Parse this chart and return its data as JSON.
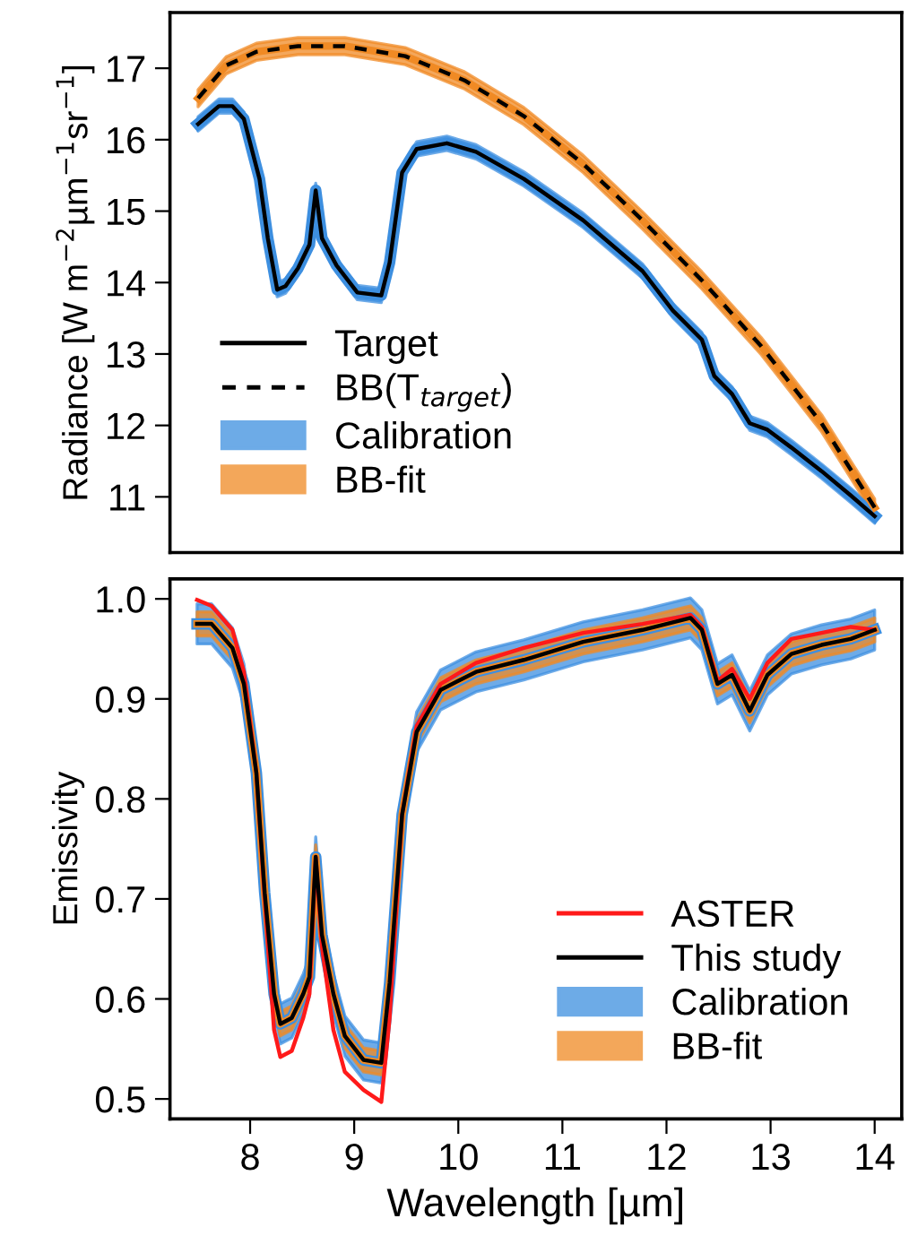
{
  "chart_data": [
    {
      "type": "line",
      "ylabel": "Radiance [W m$^{−2}$µm$^{−1}$sr$^{−1}$]",
      "xlim": [
        7.23,
        14.26
      ],
      "ylim": [
        10.22,
        17.78
      ],
      "yticks": [
        11,
        12,
        13,
        14,
        15,
        16,
        17
      ],
      "xticks": [
        8,
        9,
        10,
        11,
        12,
        13,
        14
      ],
      "tick_labels": "y",
      "grid": false,
      "legend": "bottom left",
      "series": [
        {
          "name": "Calibration",
          "type": "line",
          "color": "#3d8fe0",
          "x": [
            7.5,
            7.7,
            7.83,
            7.94,
            8.09,
            8.17,
            8.26,
            8.34,
            8.46,
            8.57,
            8.63,
            8.69,
            8.83,
            9.03,
            9.26,
            9.34,
            9.46,
            9.6,
            9.89,
            10.17,
            10.63,
            11.2,
            11.77,
            12.06,
            12.34,
            12.46,
            12.63,
            12.8,
            12.97,
            13.2,
            13.49,
            13.77,
            14.0
          ],
          "lower": [
            16.12,
            16.37,
            16.37,
            16.19,
            15.35,
            14.52,
            13.8,
            13.85,
            14.1,
            14.43,
            15.19,
            14.52,
            14.14,
            13.76,
            13.72,
            14.18,
            15.44,
            15.77,
            15.85,
            15.73,
            15.35,
            14.77,
            14.06,
            13.51,
            13.1,
            12.59,
            12.34,
            11.93,
            11.84,
            11.59,
            11.26,
            10.92,
            10.63
          ],
          "values": [
            16.22,
            16.47,
            16.47,
            16.29,
            15.45,
            14.62,
            13.9,
            13.95,
            14.2,
            14.53,
            15.29,
            14.62,
            14.24,
            13.86,
            13.82,
            14.28,
            15.54,
            15.87,
            15.95,
            15.83,
            15.45,
            14.87,
            14.16,
            13.61,
            13.2,
            12.69,
            12.44,
            12.03,
            11.94,
            11.69,
            11.36,
            11.02,
            10.73
          ],
          "upper": [
            16.32,
            16.57,
            16.57,
            16.39,
            15.55,
            14.72,
            14.0,
            14.05,
            14.3,
            14.63,
            15.39,
            14.72,
            14.34,
            13.96,
            13.92,
            14.38,
            15.64,
            15.97,
            16.05,
            15.93,
            15.55,
            14.97,
            14.26,
            13.71,
            13.3,
            12.79,
            12.54,
            12.13,
            12.04,
            11.79,
            11.46,
            11.12,
            10.83
          ]
        },
        {
          "name": "BB-fit",
          "type": "line",
          "color": "#f08a24",
          "x": [
            7.5,
            7.77,
            8.06,
            8.46,
            8.91,
            9.49,
            10.06,
            10.63,
            11.2,
            11.77,
            12.34,
            12.91,
            13.49,
            14.0
          ],
          "lower": [
            16.46,
            16.92,
            17.11,
            17.19,
            17.19,
            17.05,
            16.71,
            16.21,
            15.54,
            14.75,
            13.91,
            12.99,
            11.91,
            10.73
          ],
          "values": [
            16.58,
            17.04,
            17.23,
            17.31,
            17.31,
            17.17,
            16.83,
            16.33,
            15.66,
            14.87,
            14.03,
            13.11,
            12.03,
            10.85
          ],
          "upper": [
            16.7,
            17.16,
            17.35,
            17.43,
            17.43,
            17.29,
            16.95,
            16.45,
            15.78,
            14.99,
            14.15,
            13.23,
            12.15,
            10.97
          ]
        },
        {
          "name": "Target",
          "type": "line",
          "color": "#000000",
          "line_style": "solid",
          "x": [
            7.5,
            7.7,
            7.83,
            7.94,
            8.09,
            8.17,
            8.26,
            8.34,
            8.46,
            8.57,
            8.63,
            8.69,
            8.83,
            9.03,
            9.26,
            9.34,
            9.46,
            9.6,
            9.89,
            10.17,
            10.63,
            11.2,
            11.77,
            12.06,
            12.34,
            12.46,
            12.63,
            12.8,
            12.97,
            13.2,
            13.49,
            13.77,
            14.0
          ],
          "values": [
            16.22,
            16.47,
            16.47,
            16.29,
            15.45,
            14.62,
            13.9,
            13.95,
            14.2,
            14.53,
            15.29,
            14.62,
            14.24,
            13.86,
            13.82,
            14.28,
            15.54,
            15.87,
            15.95,
            15.83,
            15.45,
            14.87,
            14.16,
            13.61,
            13.2,
            12.69,
            12.44,
            12.03,
            11.94,
            11.69,
            11.36,
            11.02,
            10.73
          ]
        },
        {
          "name": "BB(T$_{target}$)",
          "type": "line",
          "color": "#000000",
          "line_style": "dashed",
          "x": [
            7.5,
            7.77,
            8.06,
            8.46,
            8.91,
            9.49,
            10.06,
            10.63,
            11.2,
            11.77,
            12.34,
            12.91,
            13.49,
            14.0
          ],
          "values": [
            16.58,
            17.04,
            17.23,
            17.31,
            17.31,
            17.17,
            16.83,
            16.33,
            15.66,
            14.87,
            14.03,
            13.11,
            12.03,
            10.85
          ]
        }
      ]
    },
    {
      "type": "line",
      "xlabel": "Wavelength [µm]",
      "ylabel": "Emissivity",
      "xlim": [
        7.23,
        14.26
      ],
      "ylim": [
        0.48,
        1.02
      ],
      "xticks": [
        8,
        9,
        10,
        11,
        12,
        13,
        14
      ],
      "yticks": [
        {
          "value": 0.5,
          "label": "0.5"
        },
        {
          "value": 0.6,
          "label": "0.6"
        },
        {
          "value": 0.7,
          "label": "0.7"
        },
        {
          "value": 0.8,
          "label": "0.8"
        },
        {
          "value": 0.9,
          "label": "0.9"
        },
        {
          "value": 1.0,
          "label": "1.0"
        }
      ],
      "grid": false,
      "legend": "bottom right",
      "series": [
        {
          "name": "Calibration",
          "type": "line",
          "color": "#3d8fe0",
          "x": [
            7.49,
            7.63,
            7.83,
            7.94,
            8.06,
            8.14,
            8.23,
            8.29,
            8.4,
            8.51,
            8.57,
            8.63,
            8.69,
            8.8,
            8.91,
            9.09,
            9.26,
            9.34,
            9.46,
            9.6,
            9.83,
            10.17,
            10.63,
            11.2,
            11.77,
            12.23,
            12.34,
            12.49,
            12.63,
            12.8,
            12.97,
            13.2,
            13.49,
            13.77,
            14.0
          ],
          "lower": [
            0.955,
            0.955,
            0.931,
            0.895,
            0.806,
            0.686,
            0.585,
            0.555,
            0.561,
            0.585,
            0.602,
            0.722,
            0.644,
            0.585,
            0.543,
            0.519,
            0.516,
            0.596,
            0.764,
            0.847,
            0.889,
            0.907,
            0.919,
            0.937,
            0.949,
            0.961,
            0.949,
            0.895,
            0.904,
            0.868,
            0.904,
            0.925,
            0.934,
            0.94,
            0.949
          ],
          "values": [
            0.975,
            0.975,
            0.951,
            0.915,
            0.826,
            0.706,
            0.605,
            0.575,
            0.581,
            0.605,
            0.622,
            0.742,
            0.664,
            0.605,
            0.563,
            0.539,
            0.536,
            0.616,
            0.784,
            0.867,
            0.909,
            0.927,
            0.939,
            0.957,
            0.969,
            0.981,
            0.969,
            0.915,
            0.924,
            0.888,
            0.924,
            0.945,
            0.954,
            0.96,
            0.969
          ],
          "upper": [
            0.995,
            0.995,
            0.971,
            0.935,
            0.846,
            0.726,
            0.625,
            0.595,
            0.601,
            0.625,
            0.642,
            0.762,
            0.684,
            0.625,
            0.583,
            0.559,
            0.556,
            0.636,
            0.804,
            0.887,
            0.929,
            0.947,
            0.959,
            0.977,
            0.989,
            1.001,
            0.989,
            0.935,
            0.944,
            0.908,
            0.944,
            0.965,
            0.974,
            0.98,
            0.989
          ]
        },
        {
          "name": "BB-fit",
          "type": "line",
          "color": "#f08a24",
          "x": [
            7.49,
            7.63,
            7.83,
            7.94,
            8.06,
            8.14,
            8.23,
            8.29,
            8.4,
            8.51,
            8.57,
            8.63,
            8.69,
            8.8,
            8.91,
            9.09,
            9.26,
            9.34,
            9.46,
            9.6,
            9.83,
            10.17,
            10.63,
            11.2,
            11.77,
            12.23,
            12.34,
            12.49,
            12.63,
            12.8,
            12.97,
            13.2,
            13.49,
            13.77,
            14.0
          ],
          "lower": [
            0.963,
            0.963,
            0.939,
            0.903,
            0.814,
            0.694,
            0.593,
            0.563,
            0.569,
            0.593,
            0.61,
            0.73,
            0.652,
            0.593,
            0.551,
            0.527,
            0.524,
            0.604,
            0.772,
            0.855,
            0.897,
            0.915,
            0.927,
            0.945,
            0.957,
            0.969,
            0.957,
            0.903,
            0.912,
            0.876,
            0.912,
            0.933,
            0.942,
            0.948,
            0.957
          ],
          "values": [
            0.975,
            0.975,
            0.951,
            0.915,
            0.826,
            0.706,
            0.605,
            0.575,
            0.581,
            0.605,
            0.622,
            0.742,
            0.664,
            0.605,
            0.563,
            0.539,
            0.536,
            0.616,
            0.784,
            0.867,
            0.909,
            0.927,
            0.939,
            0.957,
            0.969,
            0.981,
            0.969,
            0.915,
            0.924,
            0.888,
            0.924,
            0.945,
            0.954,
            0.96,
            0.969
          ],
          "upper": [
            0.987,
            0.987,
            0.963,
            0.927,
            0.838,
            0.718,
            0.617,
            0.587,
            0.593,
            0.617,
            0.634,
            0.754,
            0.676,
            0.617,
            0.575,
            0.551,
            0.548,
            0.628,
            0.796,
            0.879,
            0.921,
            0.939,
            0.951,
            0.969,
            0.981,
            0.993,
            0.981,
            0.927,
            0.936,
            0.9,
            0.936,
            0.957,
            0.966,
            0.972,
            0.981
          ]
        },
        {
          "name": "ASTER",
          "type": "line",
          "color": "#ff1a1a",
          "line_style": "solid",
          "x": [
            7.49,
            7.63,
            7.83,
            7.94,
            8.06,
            8.14,
            8.23,
            8.29,
            8.4,
            8.51,
            8.57,
            8.63,
            8.69,
            8.8,
            8.91,
            9.09,
            9.26,
            9.34,
            9.46,
            9.6,
            9.83,
            10.17,
            10.63,
            11.2,
            11.77,
            12.23,
            12.34,
            12.49,
            12.63,
            12.8,
            12.97,
            13.2,
            13.49,
            13.77,
            14.0
          ],
          "values": [
            0.999,
            0.993,
            0.969,
            0.927,
            0.826,
            0.7,
            0.569,
            0.542,
            0.548,
            0.581,
            0.605,
            0.742,
            0.652,
            0.569,
            0.527,
            0.509,
            0.497,
            0.581,
            0.784,
            0.873,
            0.915,
            0.936,
            0.951,
            0.966,
            0.975,
            0.984,
            0.972,
            0.918,
            0.93,
            0.9,
            0.936,
            0.96,
            0.966,
            0.972,
            0.969
          ]
        },
        {
          "name": "This study",
          "type": "line",
          "color": "#000000",
          "line_style": "solid",
          "x": [
            7.49,
            7.63,
            7.83,
            7.94,
            8.06,
            8.14,
            8.23,
            8.29,
            8.4,
            8.51,
            8.57,
            8.63,
            8.69,
            8.8,
            8.91,
            9.09,
            9.26,
            9.34,
            9.46,
            9.6,
            9.83,
            10.17,
            10.63,
            11.2,
            11.77,
            12.23,
            12.34,
            12.49,
            12.63,
            12.8,
            12.97,
            13.2,
            13.49,
            13.77,
            14.0
          ],
          "values": [
            0.975,
            0.975,
            0.951,
            0.915,
            0.826,
            0.706,
            0.605,
            0.575,
            0.581,
            0.605,
            0.622,
            0.742,
            0.664,
            0.605,
            0.563,
            0.539,
            0.536,
            0.616,
            0.784,
            0.867,
            0.909,
            0.927,
            0.939,
            0.957,
            0.969,
            0.981,
            0.969,
            0.915,
            0.924,
            0.888,
            0.924,
            0.945,
            0.954,
            0.96,
            0.969
          ]
        }
      ]
    }
  ]
}
